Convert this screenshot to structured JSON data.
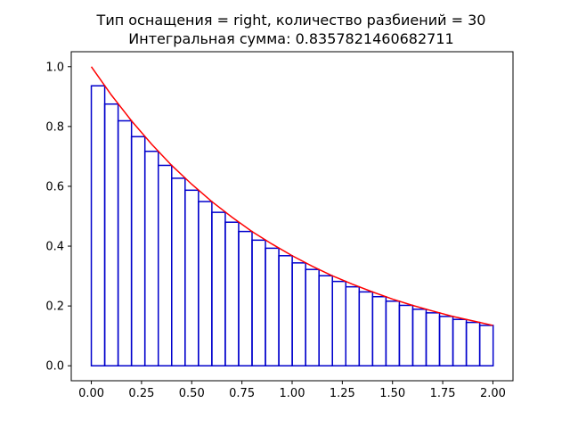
{
  "chart_data": {
    "type": "bar",
    "title_line1": "Тип оснащения = right, количество разбиений = 30",
    "title_line2": "Интегральная сумма: 0.8357821460682711",
    "xlabel": "",
    "ylabel": "",
    "xlim": [
      -0.1,
      2.1
    ],
    "ylim": [
      -0.05,
      1.05
    ],
    "grid": false,
    "x_ticks": [
      0.0,
      0.25,
      0.5,
      0.75,
      1.0,
      1.25,
      1.5,
      1.75,
      2.0
    ],
    "x_tick_labels": [
      "0.00",
      "0.25",
      "0.50",
      "0.75",
      "1.00",
      "1.25",
      "1.50",
      "1.75",
      "2.00"
    ],
    "y_ticks": [
      0.0,
      0.2,
      0.4,
      0.6,
      0.8,
      1.0
    ],
    "y_tick_labels": [
      "0.0",
      "0.2",
      "0.4",
      "0.6",
      "0.8",
      "1.0"
    ],
    "rectangles": {
      "color": "#0000cc",
      "x_start": 0.0,
      "width": 0.0667,
      "heights": [
        0.936,
        0.875,
        0.819,
        0.766,
        0.717,
        0.67,
        0.627,
        0.587,
        0.549,
        0.513,
        0.48,
        0.449,
        0.42,
        0.393,
        0.368,
        0.344,
        0.322,
        0.301,
        0.282,
        0.264,
        0.247,
        0.231,
        0.216,
        0.202,
        0.189,
        0.177,
        0.165,
        0.155,
        0.145,
        0.135
      ]
    },
    "curve": {
      "color": "#ff0000",
      "x": [
        0.0,
        0.1,
        0.2,
        0.3,
        0.4,
        0.5,
        0.6,
        0.7,
        0.8,
        0.9,
        1.0,
        1.1,
        1.2,
        1.3,
        1.4,
        1.5,
        1.6,
        1.7,
        1.8,
        1.9,
        2.0
      ],
      "y": [
        1.0,
        0.905,
        0.819,
        0.741,
        0.67,
        0.607,
        0.549,
        0.497,
        0.449,
        0.407,
        0.368,
        0.333,
        0.301,
        0.273,
        0.247,
        0.223,
        0.202,
        0.183,
        0.165,
        0.15,
        0.135
      ]
    }
  }
}
